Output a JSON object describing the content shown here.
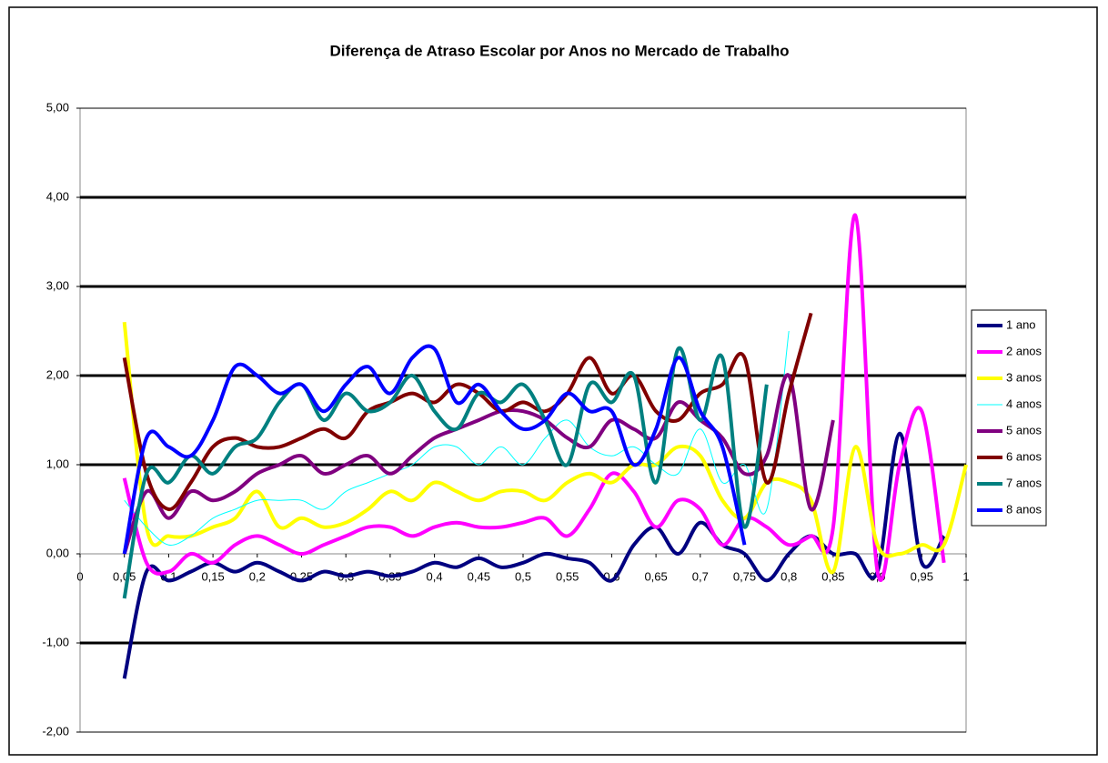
{
  "chart_data": {
    "type": "line",
    "title": "Diferença de Atraso Escolar por Anos no Mercado de Trabalho",
    "x": [
      0.05,
      0.075,
      0.1,
      0.125,
      0.15,
      0.175,
      0.2,
      0.225,
      0.25,
      0.275,
      0.3,
      0.325,
      0.35,
      0.375,
      0.4,
      0.425,
      0.45,
      0.475,
      0.5,
      0.525,
      0.55,
      0.575,
      0.6,
      0.625,
      0.65,
      0.675,
      0.7,
      0.725,
      0.75,
      0.775,
      0.8,
      0.825,
      0.85,
      0.875,
      0.9,
      0.925,
      0.95,
      0.975,
      1.0
    ],
    "series": [
      {
        "name": "1 ano",
        "color": "#000080",
        "width": 4,
        "values": [
          -1.4,
          -0.2,
          -0.3,
          -0.2,
          -0.1,
          -0.2,
          -0.1,
          -0.2,
          -0.3,
          -0.2,
          -0.25,
          -0.2,
          -0.25,
          -0.2,
          -0.1,
          -0.15,
          -0.05,
          -0.15,
          -0.1,
          0.0,
          -0.05,
          -0.1,
          -0.3,
          0.1,
          0.3,
          0.0,
          0.35,
          0.1,
          0.0,
          -0.3,
          0.0,
          0.2,
          0.0,
          0.0,
          -0.2,
          1.35,
          -0.1,
          0.2,
          null
        ]
      },
      {
        "name": "2 anos",
        "color": "#ff00ff",
        "width": 4,
        "values": [
          0.85,
          -0.1,
          -0.2,
          0.0,
          -0.1,
          0.1,
          0.2,
          0.1,
          0.0,
          0.1,
          0.2,
          0.3,
          0.3,
          0.2,
          0.3,
          0.35,
          0.3,
          0.3,
          0.35,
          0.4,
          0.2,
          0.5,
          0.9,
          0.7,
          0.3,
          0.6,
          0.5,
          0.1,
          0.4,
          0.3,
          0.1,
          0.2,
          0.3,
          3.8,
          -0.2,
          1.0,
          1.6,
          -0.1,
          null
        ]
      },
      {
        "name": "3 anos",
        "color": "#ffff00",
        "width": 4,
        "values": [
          2.6,
          0.3,
          0.2,
          0.2,
          0.3,
          0.4,
          0.7,
          0.3,
          0.4,
          0.3,
          0.35,
          0.5,
          0.7,
          0.6,
          0.8,
          0.7,
          0.6,
          0.7,
          0.7,
          0.6,
          0.8,
          0.9,
          0.8,
          1.0,
          1.0,
          1.2,
          1.1,
          0.6,
          0.4,
          0.8,
          0.8,
          0.6,
          -0.2,
          1.2,
          0.1,
          0.0,
          0.1,
          0.1,
          1.0
        ]
      },
      {
        "name": "4 anos",
        "color": "#00ffff",
        "width": 1,
        "values": [
          0.6,
          0.3,
          0.1,
          0.2,
          0.4,
          0.5,
          0.6,
          0.6,
          0.6,
          0.5,
          0.7,
          0.8,
          0.9,
          1.0,
          1.2,
          1.2,
          1.0,
          1.2,
          1.0,
          1.3,
          1.5,
          1.2,
          1.1,
          1.2,
          1.0,
          0.9,
          1.4,
          0.8,
          1.0,
          0.5,
          2.5,
          null,
          null,
          null,
          null,
          null,
          null,
          null,
          null
        ]
      },
      {
        "name": "5 anos",
        "color": "#800080",
        "width": 4,
        "values": [
          0.0,
          0.7,
          0.4,
          0.7,
          0.6,
          0.7,
          0.9,
          1.0,
          1.1,
          0.9,
          1.0,
          1.1,
          0.9,
          1.1,
          1.3,
          1.4,
          1.5,
          1.6,
          1.6,
          1.5,
          1.3,
          1.2,
          1.5,
          1.4,
          1.3,
          1.7,
          1.5,
          1.3,
          0.9,
          1.1,
          2.0,
          0.5,
          1.5,
          null,
          null,
          null,
          null,
          null,
          null
        ]
      },
      {
        "name": "6 anos",
        "color": "#800000",
        "width": 4,
        "values": [
          2.2,
          0.9,
          0.5,
          0.8,
          1.2,
          1.3,
          1.2,
          1.2,
          1.3,
          1.4,
          1.3,
          1.6,
          1.7,
          1.8,
          1.7,
          1.9,
          1.8,
          1.6,
          1.7,
          1.6,
          1.8,
          2.2,
          1.8,
          2.0,
          1.6,
          1.5,
          1.8,
          1.9,
          2.2,
          0.8,
          1.8,
          2.7,
          null,
          null,
          null,
          null,
          null,
          null,
          null
        ]
      },
      {
        "name": "7 anos",
        "color": "#008080",
        "width": 4,
        "values": [
          -0.5,
          0.9,
          0.8,
          1.1,
          0.9,
          1.2,
          1.3,
          1.7,
          1.9,
          1.5,
          1.8,
          1.6,
          1.7,
          2.0,
          1.6,
          1.4,
          1.8,
          1.7,
          1.9,
          1.5,
          1.0,
          1.9,
          1.7,
          2.0,
          0.8,
          2.3,
          1.5,
          2.2,
          0.3,
          1.9,
          null,
          null,
          null,
          null,
          null,
          null,
          null,
          null,
          null
        ]
      },
      {
        "name": "8 anos",
        "color": "#0000ff",
        "width": 4,
        "values": [
          0.0,
          1.3,
          1.2,
          1.1,
          1.5,
          2.1,
          2.0,
          1.8,
          1.9,
          1.6,
          1.9,
          2.1,
          1.8,
          2.2,
          2.3,
          1.7,
          1.9,
          1.6,
          1.4,
          1.5,
          1.8,
          1.6,
          1.6,
          1.0,
          1.4,
          2.2,
          1.6,
          1.2,
          0.1,
          null,
          null,
          null,
          null,
          null,
          null,
          null,
          null,
          null,
          null
        ]
      }
    ],
    "xlim": [
      0,
      1
    ],
    "xticks": [
      0,
      {
        "value": 0.05,
        "label": "0,05"
      },
      {
        "value": 0.1,
        "label": "0,1"
      },
      {
        "value": 0.15,
        "label": "0,15"
      },
      {
        "value": 0.2,
        "label": "0,2"
      },
      {
        "value": 0.25,
        "label": "0,25"
      },
      {
        "value": 0.3,
        "label": "0,3"
      },
      {
        "value": 0.35,
        "label": "0,35"
      },
      {
        "value": 0.4,
        "label": "0,4"
      },
      {
        "value": 0.45,
        "label": "0,45"
      },
      {
        "value": 0.5,
        "label": "0,5"
      },
      {
        "value": 0.55,
        "label": "0,55"
      },
      {
        "value": 0.6,
        "label": "0,6"
      },
      {
        "value": 0.65,
        "label": "0,65"
      },
      {
        "value": 0.7,
        "label": "0,7"
      },
      {
        "value": 0.75,
        "label": "0,75"
      },
      {
        "value": 0.8,
        "label": "0,8"
      },
      {
        "value": 0.85,
        "label": "0,85"
      },
      {
        "value": 0.9,
        "label": "0,9"
      },
      {
        "value": 0.95,
        "label": "0,95"
      },
      1
    ],
    "ylim": [
      -2,
      5
    ],
    "yticks": [
      {
        "value": -2,
        "label": "-2,00"
      },
      {
        "value": -1,
        "label": "-1,00"
      },
      {
        "value": 0,
        "label": "0,00"
      },
      {
        "value": 1,
        "label": "1,00"
      },
      {
        "value": 2,
        "label": "2,00"
      },
      {
        "value": 3,
        "label": "3,00"
      },
      {
        "value": 4,
        "label": "4,00"
      },
      {
        "value": 5,
        "label": "5,00"
      }
    ],
    "grid": true,
    "legend": "right"
  }
}
